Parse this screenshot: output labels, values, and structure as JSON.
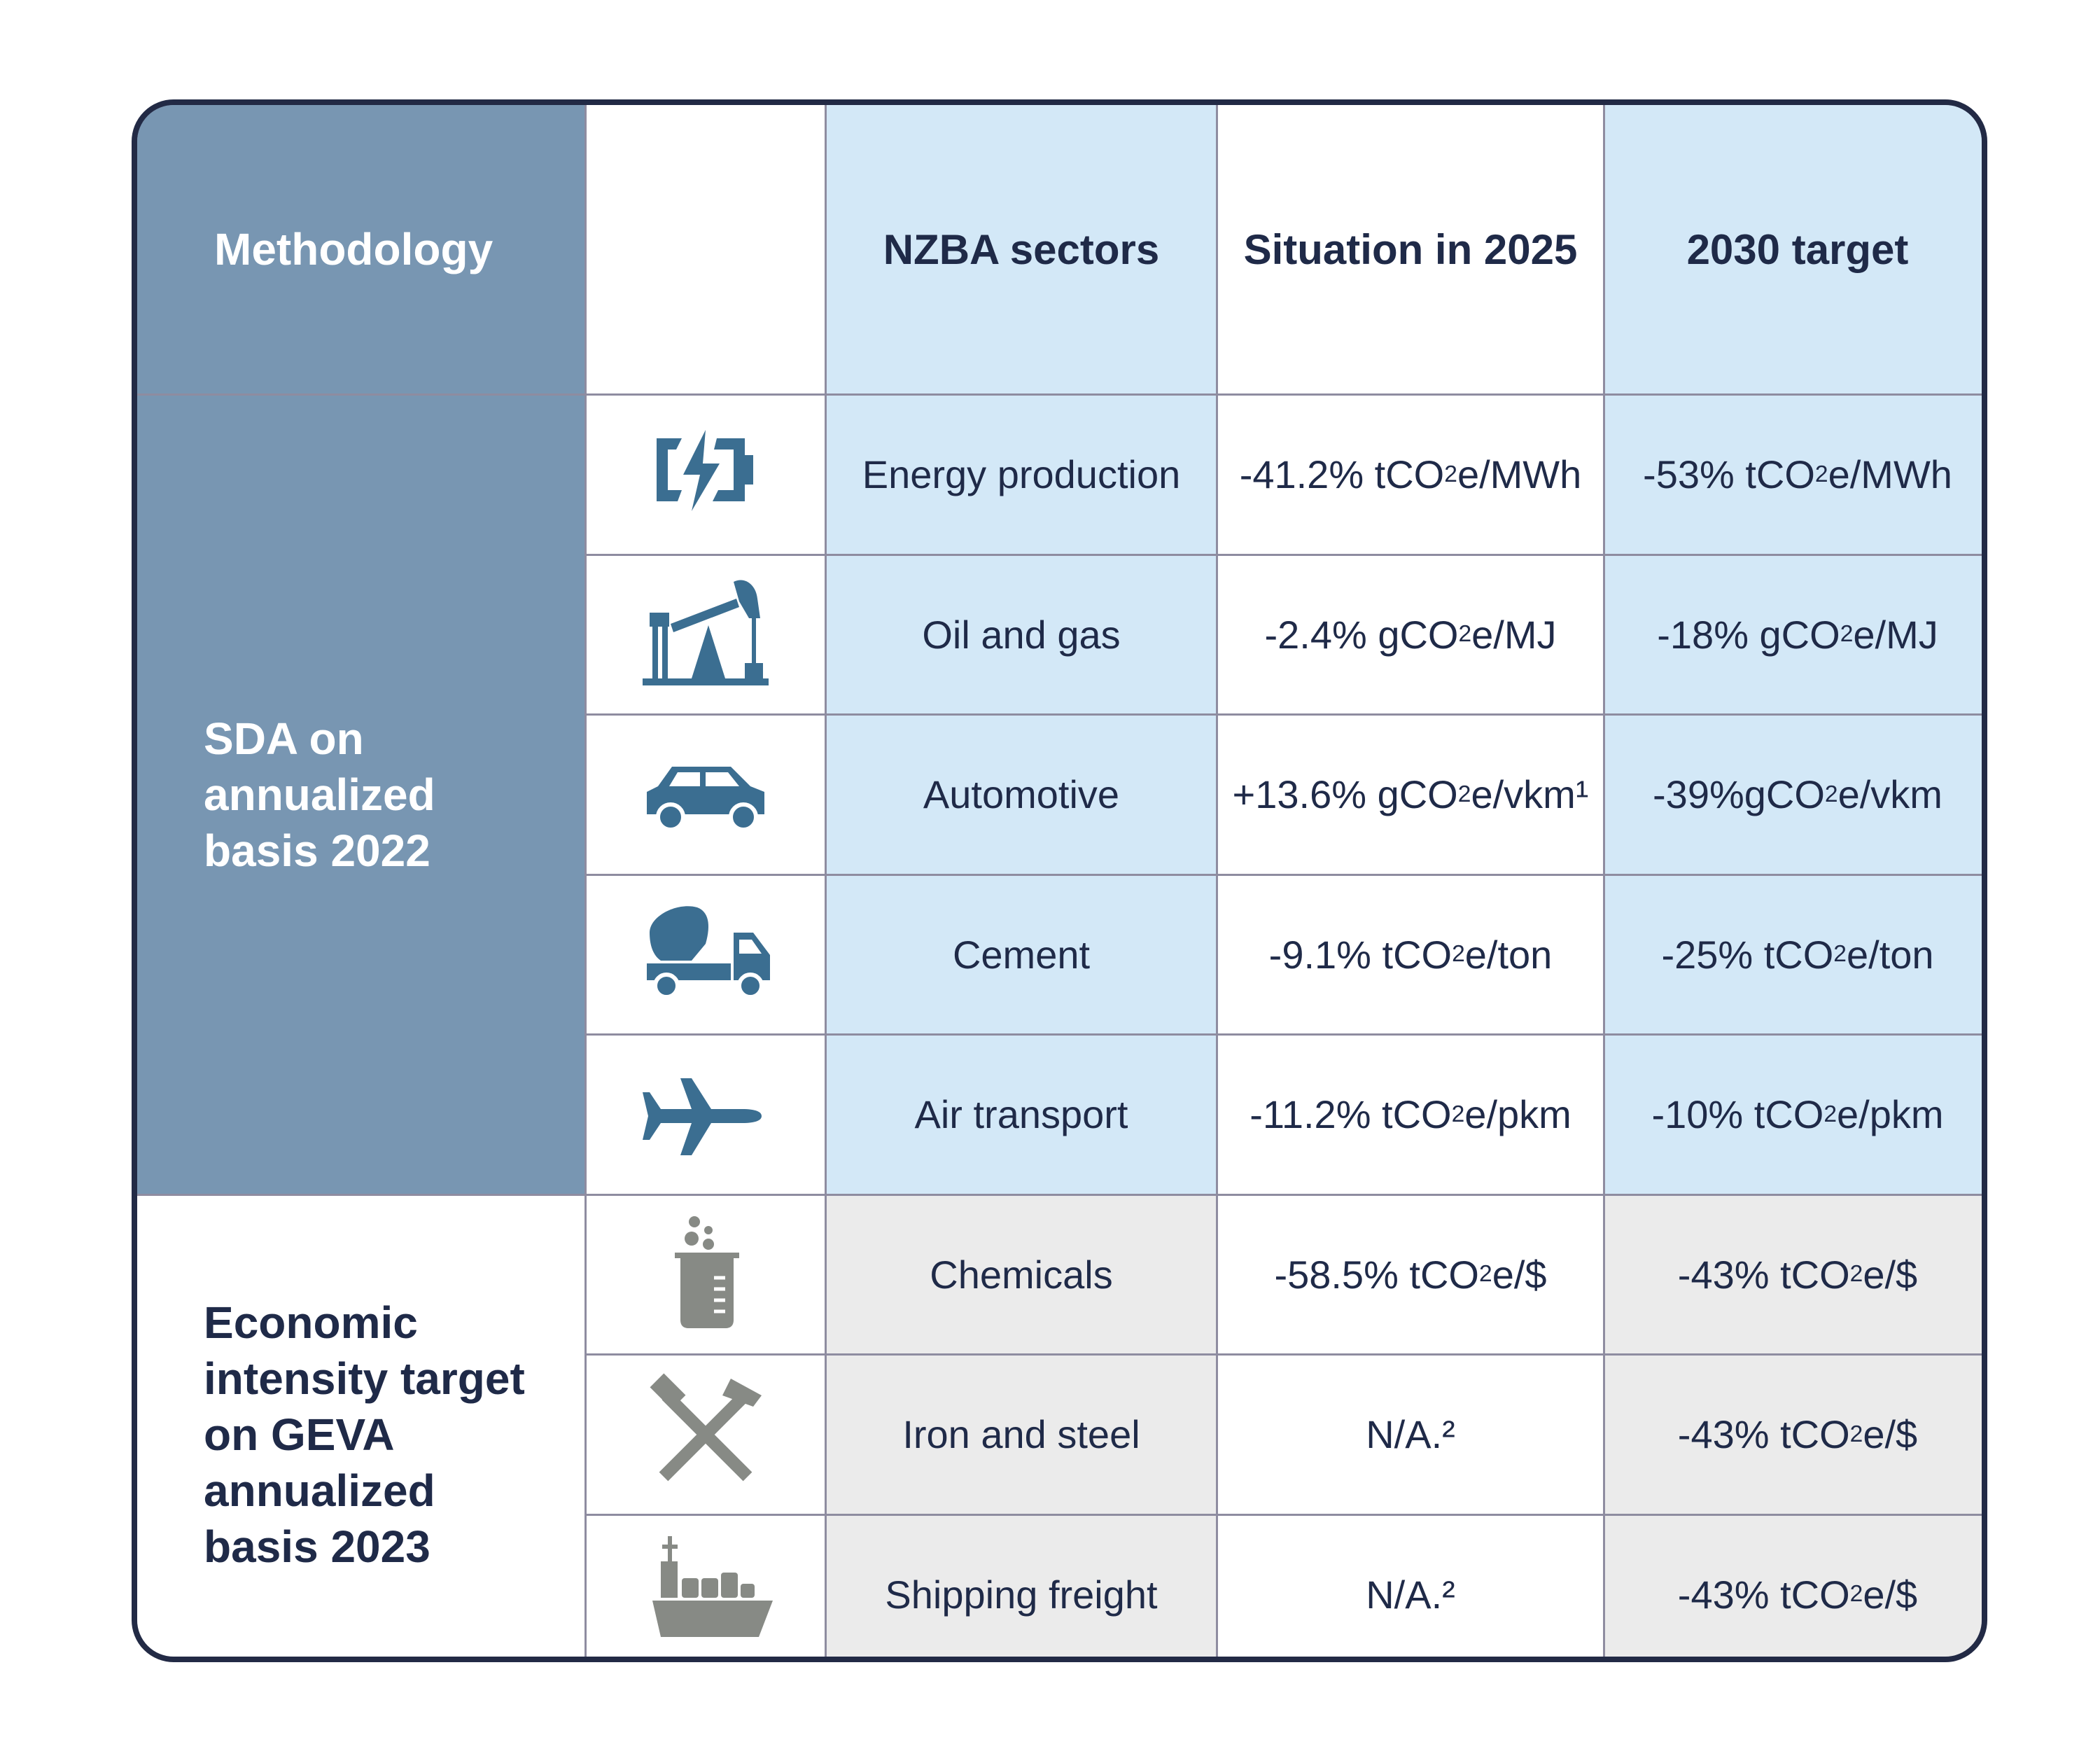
{
  "header": {
    "methodology": "Methodology",
    "icon_col": "",
    "sectors": "NZBA sectors",
    "situation": "Situation in 2025",
    "target": "2030 target"
  },
  "groups": [
    {
      "label": "SDA on annualized basis 2022"
    },
    {
      "label": "Economic intensity target on GEVA annualized basis 2023"
    }
  ],
  "colors": {
    "methodology": "#7896b2",
    "blue_cell": "#d3e8f7",
    "gray_cell": "#ebebeb",
    "icon_blue": "#3b6e91",
    "icon_gray": "#878a85",
    "border": "#222a45"
  },
  "rows": [
    {
      "icon": "battery-charging-icon",
      "sector": "Energy production",
      "situation": {
        "pre": "-41.2% tCO",
        "sub": "2",
        "post": "e/MWh"
      },
      "target": {
        "pre": "-53% tCO",
        "sub": "2",
        "post": "e/MWh"
      }
    },
    {
      "icon": "oil-pump-icon",
      "sector": "Oil and gas",
      "situation": {
        "pre": "-2.4% gCO",
        "sub": "2",
        "post": "e/MJ"
      },
      "target": {
        "pre": "-18% gCO",
        "sub": "2",
        "post": "e/MJ"
      }
    },
    {
      "icon": "car-icon",
      "sector": "Automotive",
      "situation": {
        "pre": "+13.6% gCO",
        "sub": "2",
        "post": "e/vkm¹"
      },
      "target": {
        "pre": "-39%gCO",
        "sub": "2",
        "post": "e/vkm"
      }
    },
    {
      "icon": "cement-truck-icon",
      "sector": "Cement",
      "situation": {
        "pre": "-9.1% tCO",
        "sub": "2",
        "post": "e/ton"
      },
      "target": {
        "pre": "-25% tCO",
        "sub": "2",
        "post": "e/ton"
      }
    },
    {
      "icon": "airplane-icon",
      "sector": "Air transport",
      "situation": {
        "pre": "-11.2% tCO",
        "sub": "2",
        "post": "e/pkm"
      },
      "target": {
        "pre": "-10% tCO",
        "sub": "2",
        "post": "e/pkm"
      }
    },
    {
      "icon": "beaker-icon",
      "sector": "Chemicals",
      "situation": {
        "pre": "-58.5% tCO",
        "sub": "2",
        "post": "e/$"
      },
      "target": {
        "pre": "-43% tCO",
        "sub": "2",
        "post": "e/$"
      }
    },
    {
      "icon": "crossed-hammers-icon",
      "sector": "Iron and steel",
      "situation": {
        "pre": "N/A.²",
        "sub": "",
        "post": ""
      },
      "target": {
        "pre": "-43% tCO",
        "sub": "2",
        "post": "e/$"
      }
    },
    {
      "icon": "cargo-ship-icon",
      "sector": "Shipping freight",
      "situation": {
        "pre": "N/A.²",
        "sub": "",
        "post": ""
      },
      "target": {
        "pre": "-43% tCO",
        "sub": "2",
        "post": "e/$"
      }
    }
  ]
}
